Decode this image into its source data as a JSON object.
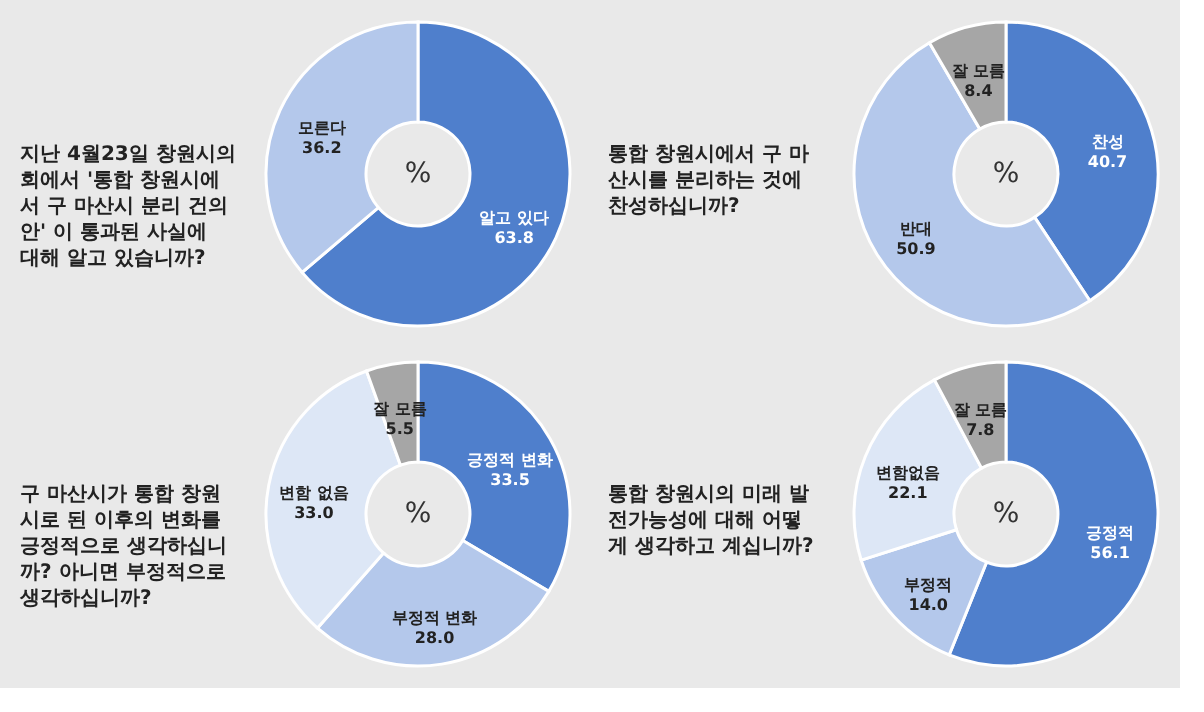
{
  "chart_data": [
    {
      "type": "donut",
      "title": "지난 4월23일 창원시의\n회에서 '통합 창원시에\n서 구 마산시 분리 건의\n안' 이 통과된 사실에\n대해 알고 있습니까?",
      "categories": [
        "알고 있다",
        "모른다"
      ],
      "values": [
        63.8,
        36.2
      ],
      "colors": [
        "#4f7fcc",
        "#b4c8eb"
      ],
      "data_labels": true,
      "annotations": [
        "%"
      ]
    },
    {
      "type": "donut",
      "title": "통합 창원시에서 구 마\n산시를 분리하는 것에\n찬성하십니까?",
      "categories": [
        "찬성",
        "반대",
        "잘 모름"
      ],
      "values": [
        40.7,
        50.9,
        8.4
      ],
      "colors": [
        "#4f7fcc",
        "#b4c8eb",
        "#a6a6a6"
      ],
      "data_labels": true,
      "annotations": [
        "%"
      ]
    },
    {
      "type": "donut",
      "title": "구 마산시가 통합 창원\n시로 된 이후의 변화를\n긍정적으로 생각하십니\n까? 아니면 부정적으로\n생각하십니까?",
      "categories": [
        "긍정적 변화",
        "부정적 변화",
        "변함 없음",
        "잘 모름"
      ],
      "values": [
        33.5,
        28.0,
        33.0,
        5.5
      ],
      "value_labels": [
        "33.5",
        "28.0",
        "33.0",
        "5.5"
      ],
      "colors": [
        "#4f7fcc",
        "#b4c8eb",
        "#dde7f6",
        "#a6a6a6"
      ],
      "annotations": [
        "%"
      ]
    },
    {
      "type": "donut",
      "title": "통합 창원시의 미래 발\n전가능성에 대해 어떻\n게 생각하고 계십니까?",
      "categories": [
        "긍정적",
        "부정적",
        "변함없음",
        "잘 모름"
      ],
      "values": [
        56.1,
        14.0,
        22.1,
        7.8
      ],
      "value_labels": [
        "56.1",
        "14.0",
        "22.1",
        "7.8"
      ],
      "colors": [
        "#4f7fcc",
        "#b4c8eb",
        "#dde7f6",
        "#a6a6a6"
      ],
      "annotations": [
        "%"
      ]
    }
  ]
}
